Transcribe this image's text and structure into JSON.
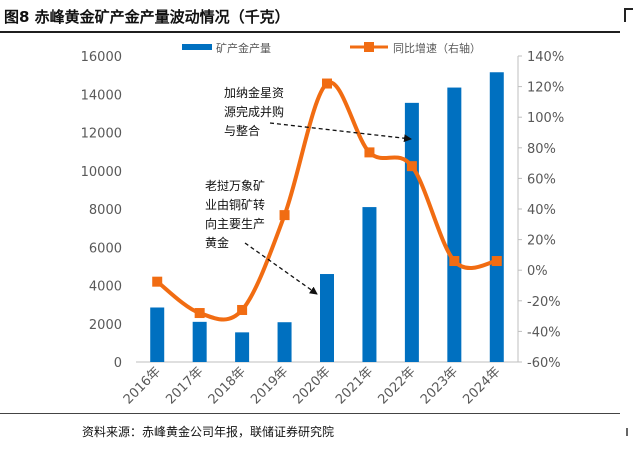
{
  "figure": {
    "title": "图8  赤峰黄金矿产金产量波动情况（千克）",
    "source": "资料来源：赤峰黄金公司年报，联储证券研究院"
  },
  "chart_data": {
    "type": "bar",
    "categories": [
      "2016年",
      "2017年",
      "2018年",
      "2019年",
      "2020年",
      "2021年",
      "2022年",
      "2023年",
      "2024年"
    ],
    "series": [
      {
        "name": "矿产金产量",
        "type": "bar",
        "axis": "left",
        "color": "#0070C0",
        "values": [
          2850,
          2100,
          1550,
          2080,
          4600,
          8100,
          13550,
          14350,
          15150
        ]
      },
      {
        "name": "同比增速（右轴）",
        "type": "line",
        "axis": "right",
        "color": "#F16C12",
        "values": [
          -7.5,
          -28,
          -26,
          36,
          122,
          77,
          68,
          6,
          6
        ]
      }
    ],
    "y_left": {
      "min": 0,
      "max": 16000,
      "ticks": [
        "0",
        "2000",
        "4000",
        "6000",
        "8000",
        "10000",
        "12000",
        "14000",
        "16000"
      ]
    },
    "y_right": {
      "min": -60,
      "max": 140,
      "ticks": [
        "-60%",
        "-40%",
        "-20%",
        "0%",
        "20%",
        "40%",
        "60%",
        "80%",
        "100%",
        "120%",
        "140%"
      ]
    },
    "legend_position": "top",
    "grid": false,
    "annotations": [
      {
        "lines": [
          "加纳金星资",
          "源完成并购",
          "与整合"
        ],
        "points_to": "2021年-2022年"
      },
      {
        "lines": [
          "老挝万象矿",
          "业由铜矿转",
          "向主要生产",
          "黄金"
        ],
        "points_to": "2020年"
      }
    ]
  }
}
